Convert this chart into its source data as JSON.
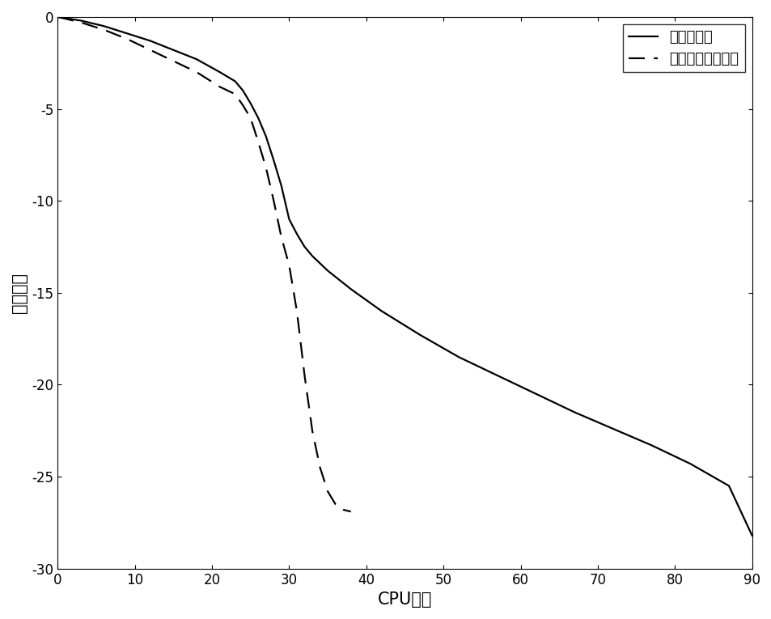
{
  "solid_x": [
    0,
    3,
    6,
    9,
    12,
    15,
    18,
    21,
    23,
    24,
    25,
    26,
    27,
    28,
    29,
    30,
    31,
    32,
    33,
    35,
    38,
    42,
    47,
    52,
    57,
    62,
    67,
    72,
    77,
    82,
    87,
    90
  ],
  "solid_y": [
    0,
    -0.2,
    -0.5,
    -0.9,
    -1.3,
    -1.8,
    -2.3,
    -3.0,
    -3.5,
    -4.0,
    -4.7,
    -5.5,
    -6.5,
    -7.8,
    -9.2,
    -11.0,
    -11.8,
    -12.5,
    -13.0,
    -13.8,
    -14.8,
    -16.0,
    -17.3,
    -18.5,
    -19.5,
    -20.5,
    -21.5,
    -22.4,
    -23.3,
    -24.3,
    -25.5,
    -28.2
  ],
  "dashed_x": [
    0,
    3,
    6,
    9,
    12,
    15,
    18,
    21,
    23,
    24,
    25,
    26,
    27,
    28,
    29,
    30,
    31,
    32,
    33,
    34,
    35,
    36,
    37,
    38
  ],
  "dashed_y": [
    0,
    -0.3,
    -0.7,
    -1.2,
    -1.8,
    -2.4,
    -3.0,
    -3.8,
    -4.2,
    -4.8,
    -5.5,
    -6.8,
    -8.2,
    -10.0,
    -12.0,
    -13.5,
    -16.0,
    -19.5,
    -22.5,
    -24.5,
    -25.8,
    -26.5,
    -26.8,
    -26.9
  ],
  "xlabel": "CPU时间",
  "ylabel": "收敛测度",
  "legend_solid": "梯度投影法",
  "legend_dashed": "变尺度梯度校正法",
  "xlim": [
    0,
    90
  ],
  "ylim": [
    -30,
    0
  ],
  "xticks": [
    0,
    10,
    20,
    30,
    40,
    50,
    60,
    70,
    80,
    90
  ],
  "yticks": [
    0,
    -5,
    -10,
    -15,
    -20,
    -25,
    -30
  ],
  "line_color": "#000000",
  "bg_color": "#ffffff",
  "legend_loc": "upper right"
}
